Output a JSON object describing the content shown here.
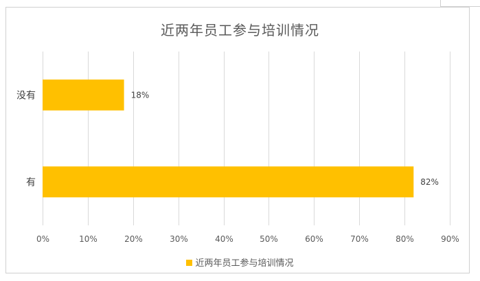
{
  "chart_data": {
    "type": "bar",
    "orientation": "horizontal",
    "title": "近两年员工参与培训情况",
    "categories": [
      "没有",
      "有"
    ],
    "series": [
      {
        "name": "近两年员工参与培训情况",
        "values": [
          18,
          82
        ],
        "labels": [
          "18%",
          "82%"
        ],
        "color": "#ffc000"
      }
    ],
    "xlim": [
      0,
      90
    ],
    "x_ticks": [
      0,
      10,
      20,
      30,
      40,
      50,
      60,
      70,
      80,
      90
    ],
    "x_tick_labels": [
      "0%",
      "10%",
      "20%",
      "30%",
      "40%",
      "50%",
      "60%",
      "70%",
      "80%",
      "90%"
    ],
    "xlabel": "",
    "ylabel": "",
    "grid": true,
    "legend_position": "bottom"
  }
}
